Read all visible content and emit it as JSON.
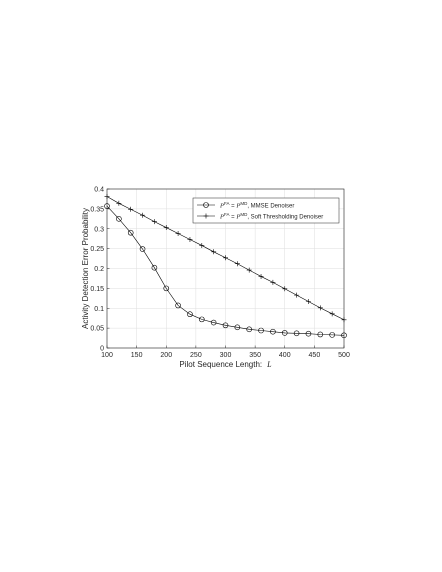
{
  "chart_data": {
    "type": "line",
    "title": "",
    "xlabel": "Pilot Sequence Length:",
    "xlabel_symbol": "L",
    "ylabel": "Activity Detection Error Probability",
    "xlim": [
      100,
      500
    ],
    "ylim": [
      0,
      0.4
    ],
    "xticks": [
      "100",
      "150",
      "200",
      "250",
      "300",
      "350",
      "400",
      "450",
      "500"
    ],
    "yticks": [
      "0",
      "0.05",
      "0.1",
      "0.15",
      "0.2",
      "0.25",
      "0.3",
      "0.35",
      "0.4"
    ],
    "grid": true,
    "legend_position": "top-right",
    "x": [
      100,
      120,
      140,
      160,
      180,
      200,
      220,
      240,
      260,
      280,
      300,
      320,
      340,
      360,
      380,
      400,
      420,
      440,
      460,
      480,
      500
    ],
    "series": [
      {
        "name_parts": {
          "p1": "P",
          "s1": "FA",
          "eq": " = ",
          "p2": "P",
          "s2": "MD",
          "rest": ", MMSE Denoiser"
        },
        "marker": "circle",
        "color": "#000000",
        "values": [
          0.357,
          0.325,
          0.29,
          0.249,
          0.202,
          0.15,
          0.107,
          0.085,
          0.072,
          0.064,
          0.057,
          0.052,
          0.047,
          0.044,
          0.041,
          0.038,
          0.037,
          0.036,
          0.034,
          0.033,
          0.032
        ]
      },
      {
        "name_parts": {
          "p1": "P",
          "s1": "FA",
          "eq": " = ",
          "p2": "P",
          "s2": "MD",
          "rest": ", Soft Thresholding Denoiser"
        },
        "marker": "plus",
        "color": "#000000",
        "values": [
          0.381,
          0.364,
          0.349,
          0.334,
          0.318,
          0.303,
          0.288,
          0.273,
          0.258,
          0.242,
          0.227,
          0.212,
          0.196,
          0.18,
          0.165,
          0.149,
          0.133,
          0.117,
          0.101,
          0.086,
          0.071
        ]
      }
    ]
  }
}
